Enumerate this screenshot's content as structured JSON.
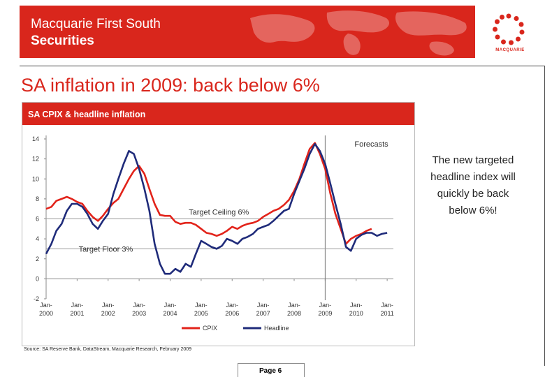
{
  "banner": {
    "line1": "Macquarie First South",
    "line2": "Securities",
    "logo_text": "MACQUARIE"
  },
  "slide": {
    "title": "SA inflation in 2009:  back below 6%",
    "note": "The new targeted headline index will quickly be back below 6%!",
    "page": "Page 6"
  },
  "colors": {
    "brand_red": "#d9261c",
    "cpix": "#e2231a",
    "headline": "#1f2b7a"
  },
  "chart_data": {
    "type": "line",
    "title": "SA CPIX & headline inflation",
    "source": "Source: SA Reserve Bank, DataStream, Macquarie Research, February 2009",
    "ylim": [
      -2,
      14
    ],
    "y_ticks": [
      "14",
      "12",
      "10",
      "8",
      "6",
      "4",
      "2",
      "0",
      "-2"
    ],
    "x_ticks": [
      [
        "Jan-",
        "2000"
      ],
      [
        "Jan-",
        "2001"
      ],
      [
        "Jan-",
        "2002"
      ],
      [
        "Jan-",
        "2003"
      ],
      [
        "Jan-",
        "2004"
      ],
      [
        "Jan-",
        "2005"
      ],
      [
        "Jan-",
        "2006"
      ],
      [
        "Jan-",
        "2007"
      ],
      [
        "Jan-",
        "2008"
      ],
      [
        "Jan-",
        "2009"
      ],
      [
        "Jan-",
        "2010"
      ],
      [
        "Jan-",
        "2011"
      ]
    ],
    "xlim": [
      2000,
      2011.2
    ],
    "grid": false,
    "legend": "bottom-center",
    "annotations": {
      "forecasts": "Forecasts",
      "ceiling": "Target Ceiling 6%",
      "floor": "Target Floor 3%"
    },
    "targets": {
      "ceiling": 6,
      "floor": 3
    },
    "forecast_start": 2009.0,
    "series": [
      {
        "name": "CPIX",
        "x": [
          2000.0,
          2000.17,
          2000.33,
          2000.5,
          2000.67,
          2000.83,
          2001.0,
          2001.17,
          2001.33,
          2001.5,
          2001.67,
          2001.83,
          2002.0,
          2002.17,
          2002.33,
          2002.5,
          2002.67,
          2002.83,
          2003.0,
          2003.17,
          2003.33,
          2003.5,
          2003.67,
          2003.83,
          2004.0,
          2004.17,
          2004.33,
          2004.5,
          2004.67,
          2004.83,
          2005.0,
          2005.17,
          2005.33,
          2005.5,
          2005.67,
          2005.83,
          2006.0,
          2006.17,
          2006.33,
          2006.5,
          2006.67,
          2006.83,
          2007.0,
          2007.17,
          2007.33,
          2007.5,
          2007.67,
          2007.83,
          2008.0,
          2008.17,
          2008.33,
          2008.5,
          2008.67,
          2008.83,
          2009.0,
          2009.17,
          2009.33,
          2009.5,
          2009.67,
          2009.83,
          2010.0,
          2010.17,
          2010.33,
          2010.5
        ],
        "values": [
          7.0,
          7.2,
          7.8,
          8.0,
          8.2,
          8.0,
          7.7,
          7.5,
          6.8,
          6.2,
          5.8,
          6.3,
          7.0,
          7.6,
          8.0,
          9.0,
          10.0,
          10.8,
          11.3,
          10.5,
          9.0,
          7.5,
          6.4,
          6.3,
          6.3,
          5.7,
          5.5,
          5.6,
          5.6,
          5.4,
          5.0,
          4.6,
          4.5,
          4.3,
          4.5,
          4.8,
          5.2,
          5.0,
          5.3,
          5.5,
          5.6,
          5.8,
          6.2,
          6.5,
          6.8,
          7.0,
          7.4,
          7.9,
          8.8,
          10.0,
          11.5,
          13.0,
          13.6,
          12.5,
          11.0,
          8.5,
          6.5,
          5.0,
          3.5,
          4.0,
          4.3,
          4.5,
          4.8,
          5.0
        ]
      },
      {
        "name": "Headline",
        "x": [
          2000.0,
          2000.17,
          2000.33,
          2000.5,
          2000.67,
          2000.83,
          2001.0,
          2001.17,
          2001.33,
          2001.5,
          2001.67,
          2001.83,
          2002.0,
          2002.17,
          2002.33,
          2002.5,
          2002.67,
          2002.83,
          2003.0,
          2003.17,
          2003.33,
          2003.5,
          2003.67,
          2003.83,
          2004.0,
          2004.17,
          2004.33,
          2004.5,
          2004.67,
          2004.83,
          2005.0,
          2005.17,
          2005.33,
          2005.5,
          2005.67,
          2005.83,
          2006.0,
          2006.17,
          2006.33,
          2006.5,
          2006.67,
          2006.83,
          2007.0,
          2007.17,
          2007.33,
          2007.5,
          2007.67,
          2007.83,
          2008.0,
          2008.17,
          2008.33,
          2008.5,
          2008.67,
          2008.83,
          2009.0,
          2009.17,
          2009.33,
          2009.5,
          2009.67,
          2009.83,
          2010.0,
          2010.17,
          2010.33,
          2010.5,
          2010.67,
          2010.83,
          2011.0
        ],
        "values": [
          2.5,
          3.5,
          4.8,
          5.5,
          6.8,
          7.5,
          7.5,
          7.2,
          6.5,
          5.5,
          5.0,
          5.8,
          6.5,
          8.5,
          10.0,
          11.5,
          12.8,
          12.5,
          11.0,
          9.0,
          6.8,
          3.5,
          1.5,
          0.5,
          0.5,
          1.0,
          0.7,
          1.5,
          1.2,
          2.5,
          3.8,
          3.5,
          3.2,
          3.0,
          3.3,
          4.0,
          3.8,
          3.5,
          4.0,
          4.2,
          4.5,
          5.0,
          5.2,
          5.4,
          5.8,
          6.3,
          6.8,
          7.0,
          8.5,
          9.8,
          11.0,
          12.5,
          13.5,
          12.8,
          11.5,
          9.5,
          7.5,
          5.5,
          3.2,
          2.8,
          4.0,
          4.4,
          4.6,
          4.6,
          4.3,
          4.5,
          4.6
        ]
      }
    ]
  }
}
